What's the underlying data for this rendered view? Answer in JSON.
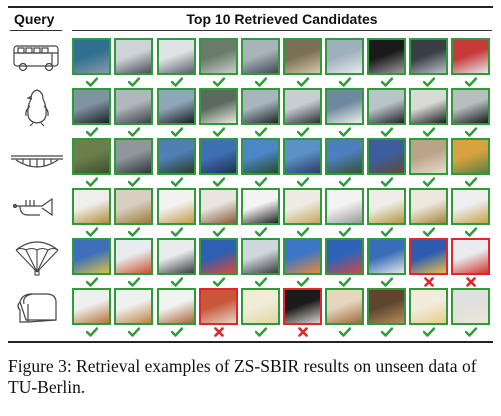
{
  "figure": {
    "query_header": "Query",
    "candidates_header": "Top 10 Retrieved Candidates",
    "rows": [
      {
        "query_sketch": "bus-sketch",
        "results": [
          {
            "correct": true,
            "colors": [
              "#2f6f8f",
              "#8a9ba8"
            ]
          },
          {
            "correct": true,
            "colors": [
              "#cfd4d8",
              "#4a5058"
            ]
          },
          {
            "correct": true,
            "colors": [
              "#dfe3e6",
              "#59606a"
            ]
          },
          {
            "correct": true,
            "colors": [
              "#6a7b6a",
              "#c9cfc9"
            ]
          },
          {
            "correct": true,
            "colors": [
              "#a9b3ba",
              "#3f4a55"
            ]
          },
          {
            "correct": true,
            "colors": [
              "#7b6f55",
              "#d4c9a8"
            ]
          },
          {
            "correct": true,
            "colors": [
              "#9fb0bd",
              "#e9ecee"
            ]
          },
          {
            "correct": true,
            "colors": [
              "#1a1a1a",
              "#9a9a9a"
            ]
          },
          {
            "correct": true,
            "colors": [
              "#3a3f46",
              "#b9c0c7"
            ]
          },
          {
            "correct": true,
            "colors": [
              "#c83a3a",
              "#e6e8ea"
            ]
          }
        ]
      },
      {
        "query_sketch": "penguin-sketch",
        "results": [
          {
            "correct": true,
            "colors": [
              "#7f93a1",
              "#1d2125"
            ]
          },
          {
            "correct": true,
            "colors": [
              "#b0b8bd",
              "#3a3f44"
            ]
          },
          {
            "correct": true,
            "colors": [
              "#8fa6b8",
              "#1a1c1f"
            ]
          },
          {
            "correct": true,
            "colors": [
              "#5b6a5c",
              "#e9e9e0"
            ]
          },
          {
            "correct": true,
            "colors": [
              "#a8b5bf",
              "#222528"
            ]
          },
          {
            "correct": true,
            "colors": [
              "#c7cdd1",
              "#2c3034"
            ]
          },
          {
            "correct": true,
            "colors": [
              "#6d8aa0",
              "#f0f0ea"
            ]
          },
          {
            "correct": true,
            "colors": [
              "#b9c4c9",
              "#202326"
            ]
          },
          {
            "correct": true,
            "colors": [
              "#d9d9d6",
              "#1b1d1f"
            ]
          },
          {
            "correct": true,
            "colors": [
              "#b7bdc1",
              "#181a1c"
            ]
          }
        ]
      },
      {
        "query_sketch": "bridge-sketch",
        "results": [
          {
            "correct": true,
            "colors": [
              "#6b7f4d",
              "#3d4f2a"
            ]
          },
          {
            "correct": true,
            "colors": [
              "#8e989b",
              "#2f3538"
            ]
          },
          {
            "correct": true,
            "colors": [
              "#4f7fb5",
              "#2a3b2a"
            ]
          },
          {
            "correct": true,
            "colors": [
              "#3f6fb3",
              "#1f2f4f"
            ]
          },
          {
            "correct": true,
            "colors": [
              "#4b86c6",
              "#274a2a"
            ]
          },
          {
            "correct": true,
            "colors": [
              "#5a91c9",
              "#2d3c5c"
            ]
          },
          {
            "correct": true,
            "colors": [
              "#4c7fbf",
              "#3b4f2f"
            ]
          },
          {
            "correct": true,
            "colors": [
              "#3c5e9f",
              "#5e4a3a"
            ]
          },
          {
            "correct": true,
            "colors": [
              "#b9a48a",
              "#e8ddd0"
            ]
          },
          {
            "correct": true,
            "colors": [
              "#d9a240",
              "#5d7f3f"
            ]
          }
        ]
      },
      {
        "query_sketch": "trumpet-sketch",
        "results": [
          {
            "correct": true,
            "colors": [
              "#eeeeea",
              "#b78b3a"
            ]
          },
          {
            "correct": true,
            "colors": [
              "#d8cfc0",
              "#a07a3a"
            ]
          },
          {
            "correct": true,
            "colors": [
              "#f2f2f0",
              "#c49a4a"
            ]
          },
          {
            "correct": true,
            "colors": [
              "#e9e6e0",
              "#8a5a3a"
            ]
          },
          {
            "correct": true,
            "colors": [
              "#f4f4f4",
              "#222222"
            ]
          },
          {
            "correct": true,
            "colors": [
              "#efece6",
              "#c8a45a"
            ]
          },
          {
            "correct": true,
            "colors": [
              "#f3f3f3",
              "#9a9a9a"
            ]
          },
          {
            "correct": true,
            "colors": [
              "#f0ede8",
              "#b8953f"
            ]
          },
          {
            "correct": true,
            "colors": [
              "#ede8de",
              "#a8853a"
            ]
          },
          {
            "correct": true,
            "colors": [
              "#eeeeee",
              "#c9a24a"
            ]
          }
        ]
      },
      {
        "query_sketch": "parachute-sketch",
        "results": [
          {
            "correct": true,
            "colors": [
              "#3f6fb8",
              "#d8c24a"
            ]
          },
          {
            "correct": true,
            "colors": [
              "#e8ecef",
              "#c9532f"
            ]
          },
          {
            "correct": true,
            "colors": [
              "#e9ebec",
              "#3a3d40"
            ]
          },
          {
            "correct": true,
            "colors": [
              "#2e5fb0",
              "#d9483a"
            ]
          },
          {
            "correct": true,
            "colors": [
              "#cfd7dc",
              "#3a3d40"
            ]
          },
          {
            "correct": true,
            "colors": [
              "#3e75c4",
              "#e58a3a"
            ]
          },
          {
            "correct": true,
            "colors": [
              "#2f63b8",
              "#c74b4b"
            ]
          },
          {
            "correct": true,
            "colors": [
              "#3a6db9",
              "#e5e5e5"
            ]
          },
          {
            "correct": false,
            "colors": [
              "#2d5bb0",
              "#e8c24a"
            ]
          },
          {
            "correct": false,
            "colors": [
              "#e9ecef",
              "#d2382f"
            ]
          }
        ]
      },
      {
        "query_sketch": "bread-sketch",
        "results": [
          {
            "correct": true,
            "colors": [
              "#efefef",
              "#b8743a"
            ]
          },
          {
            "correct": true,
            "colors": [
              "#f0f0f0",
              "#c08044"
            ]
          },
          {
            "correct": true,
            "colors": [
              "#f2f2f2",
              "#a8643a"
            ]
          },
          {
            "correct": false,
            "colors": [
              "#c8573a",
              "#e3d7c9"
            ]
          },
          {
            "correct": true,
            "colors": [
              "#f0ecd8",
              "#e2d7a2"
            ]
          },
          {
            "correct": false,
            "colors": [
              "#1a1a1a",
              "#d9d4cc"
            ]
          },
          {
            "correct": true,
            "colors": [
              "#e5d6bd",
              "#9b6a3d"
            ]
          },
          {
            "correct": true,
            "colors": [
              "#5e4532",
              "#b78a5a"
            ]
          },
          {
            "correct": true,
            "colors": [
              "#f2ecdf",
              "#e8cc8a"
            ]
          },
          {
            "correct": true,
            "colors": [
              "#dfe0df",
              "#ece6d7"
            ]
          }
        ]
      }
    ]
  },
  "caption": "Figure 3: Retrieval examples of ZS-SBIR results on unseen data of TU-Berlin."
}
